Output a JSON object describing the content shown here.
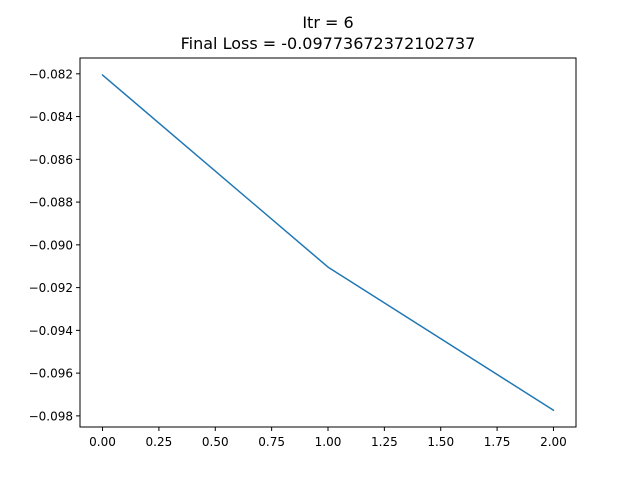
{
  "chart_data": {
    "type": "line",
    "title": "Itr = 6",
    "subtitle": "Final Loss = -0.09773672372102737",
    "xlabel": "",
    "ylabel": "",
    "x": [
      0,
      1,
      2
    ],
    "series": [
      {
        "values": [
          -0.08206,
          -0.09104,
          -0.09773672372102737
        ],
        "color": "#1f77b4"
      }
    ],
    "xlim": [
      -0.1,
      2.1
    ],
    "ylim": [
      -0.09852,
      -0.08126
    ],
    "xticks": [
      0.0,
      0.25,
      0.5,
      0.75,
      1.0,
      1.25,
      1.5,
      1.75,
      2.0
    ],
    "xtick_labels": [
      "0.00",
      "0.25",
      "0.50",
      "0.75",
      "1.00",
      "1.25",
      "1.50",
      "1.75",
      "2.00"
    ],
    "yticks": [
      -0.082,
      -0.084,
      -0.086,
      -0.088,
      -0.09,
      -0.092,
      -0.094,
      -0.096,
      -0.098
    ],
    "ytick_labels": [
      "−0.082",
      "−0.084",
      "−0.086",
      "−0.088",
      "−0.090",
      "−0.092",
      "−0.094",
      "−0.096",
      "−0.098"
    ],
    "grid": false,
    "legend": "none"
  }
}
